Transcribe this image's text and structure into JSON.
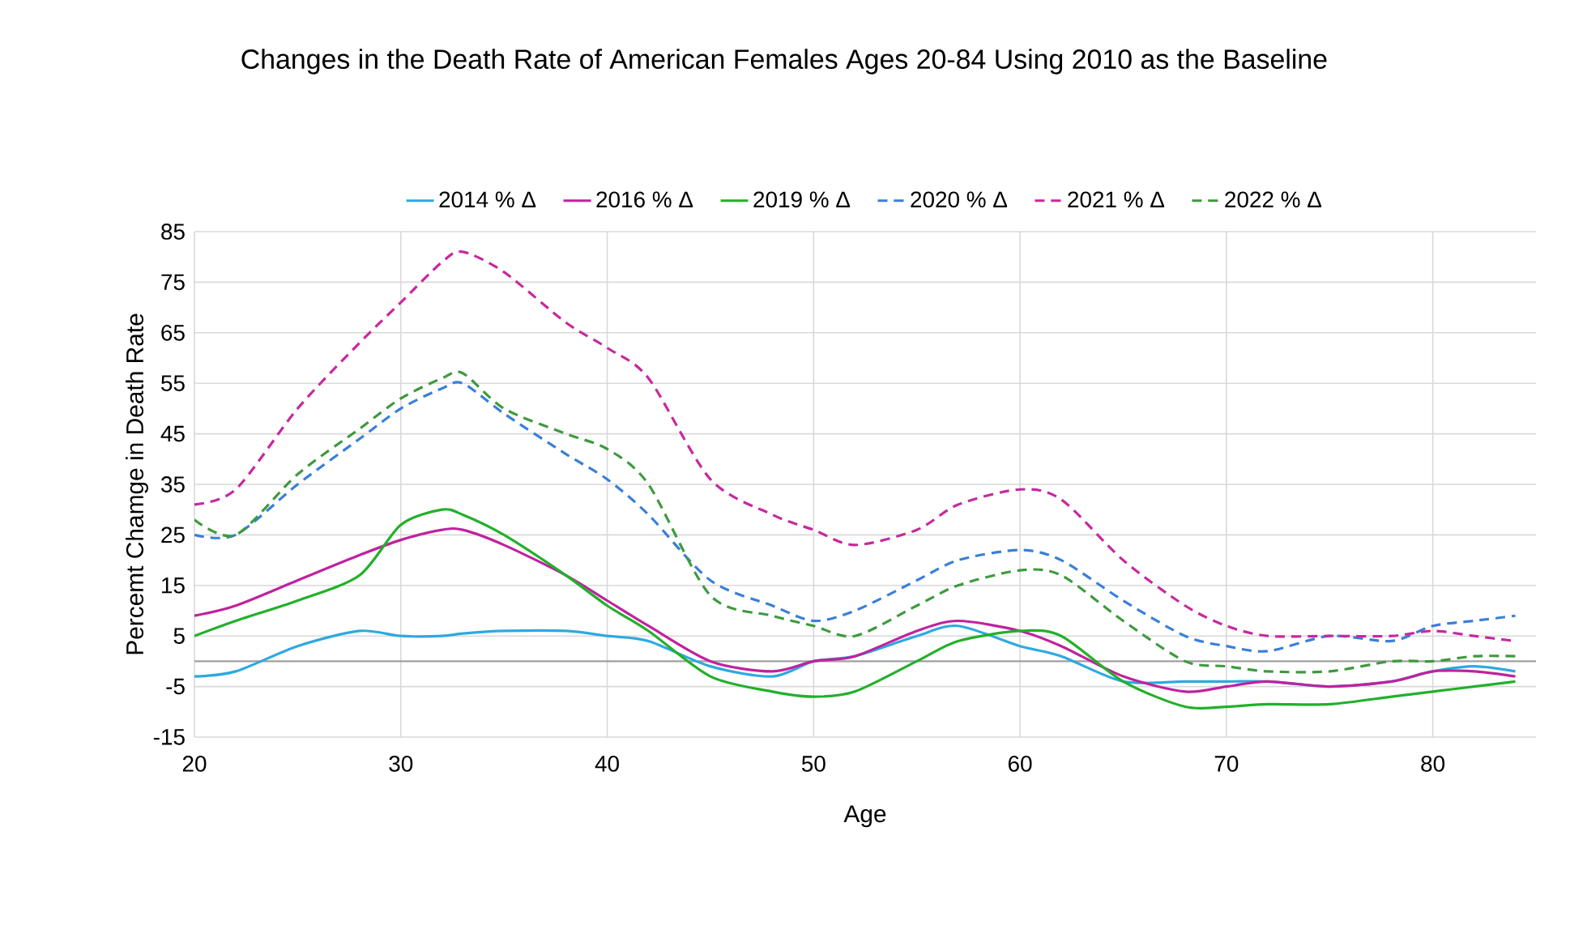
{
  "chart_data": {
    "type": "line",
    "title": "Changes in the Death Rate of American Females Ages 20-84 Using 2010 as the Baseline",
    "xlabel": "Age",
    "ylabel": "Percemt Chamge in Death Rate",
    "x": [
      20,
      22,
      25,
      28,
      30,
      32,
      33,
      35,
      38,
      40,
      42,
      45,
      48,
      50,
      52,
      55,
      57,
      60,
      62,
      65,
      68,
      70,
      72,
      75,
      78,
      80,
      82,
      84
    ],
    "series": [
      {
        "name": "2014 % Δ",
        "color": "#2ea9df",
        "line_style": "solid",
        "values": [
          -3,
          -2,
          3,
          6,
          5,
          5,
          5.5,
          6,
          6,
          5,
          4,
          -1,
          -3,
          0,
          1,
          5,
          7,
          3,
          1,
          -4,
          -4,
          -4,
          -4,
          -5,
          -4,
          -2,
          -1,
          -2
        ]
      },
      {
        "name": "2016 % Δ",
        "color": "#c0229f",
        "line_style": "solid",
        "values": [
          9,
          11,
          16,
          21,
          24,
          26,
          26,
          23,
          17,
          12,
          7,
          0,
          -2,
          0,
          1,
          6,
          8,
          6,
          3,
          -3,
          -6,
          -5,
          -4,
          -5,
          -4,
          -2,
          -2,
          -3
        ]
      },
      {
        "name": "2019 % Δ",
        "color": "#22b02a",
        "line_style": "solid",
        "values": [
          5,
          8,
          12,
          17,
          27,
          30,
          29,
          25,
          17,
          11,
          6,
          -3,
          -6,
          -7,
          -6,
          0,
          4,
          6,
          5,
          -4,
          -9,
          -9,
          -8.5,
          -8.5,
          -7,
          -6,
          -5,
          -4
        ]
      },
      {
        "name": "2020 % Δ",
        "color": "#3a7fd8",
        "line_style": "dashed",
        "values": [
          25,
          25,
          35,
          44,
          50,
          54,
          55,
          49,
          41,
          36,
          29,
          16,
          11,
          8,
          10,
          16,
          20,
          22,
          20,
          12,
          5,
          3,
          2,
          5,
          4,
          7,
          8,
          9
        ]
      },
      {
        "name": "2021 % Δ",
        "color": "#c8289f",
        "line_style": "dashed",
        "values": [
          31,
          34,
          50,
          63,
          71,
          79,
          81,
          77,
          67,
          62,
          56,
          36,
          29,
          26,
          23,
          26,
          31,
          34,
          32,
          20,
          11,
          7,
          5,
          5,
          5,
          6,
          5,
          4
        ]
      },
      {
        "name": "2022 % Δ",
        "color": "#3d9a3d",
        "line_style": "dashed",
        "values": [
          28,
          25,
          37,
          46,
          52,
          56,
          57,
          50,
          45,
          42,
          35,
          13,
          9,
          7,
          5,
          11,
          15,
          18,
          17,
          8,
          0,
          -1,
          -2,
          -2,
          0,
          0,
          1,
          1
        ]
      }
    ],
    "xlim": [
      20,
      85
    ],
    "xticks": [
      20,
      30,
      40,
      50,
      60,
      70,
      80
    ],
    "ylim": [
      -15,
      85
    ],
    "yticks": [
      -15,
      -5,
      5,
      15,
      25,
      35,
      45,
      55,
      65,
      75,
      85
    ],
    "ref_lines": [
      {
        "axis": "y",
        "value": 0,
        "color": "#a0a0a0"
      }
    ],
    "grid": true,
    "legend": "top",
    "marker": "none"
  }
}
